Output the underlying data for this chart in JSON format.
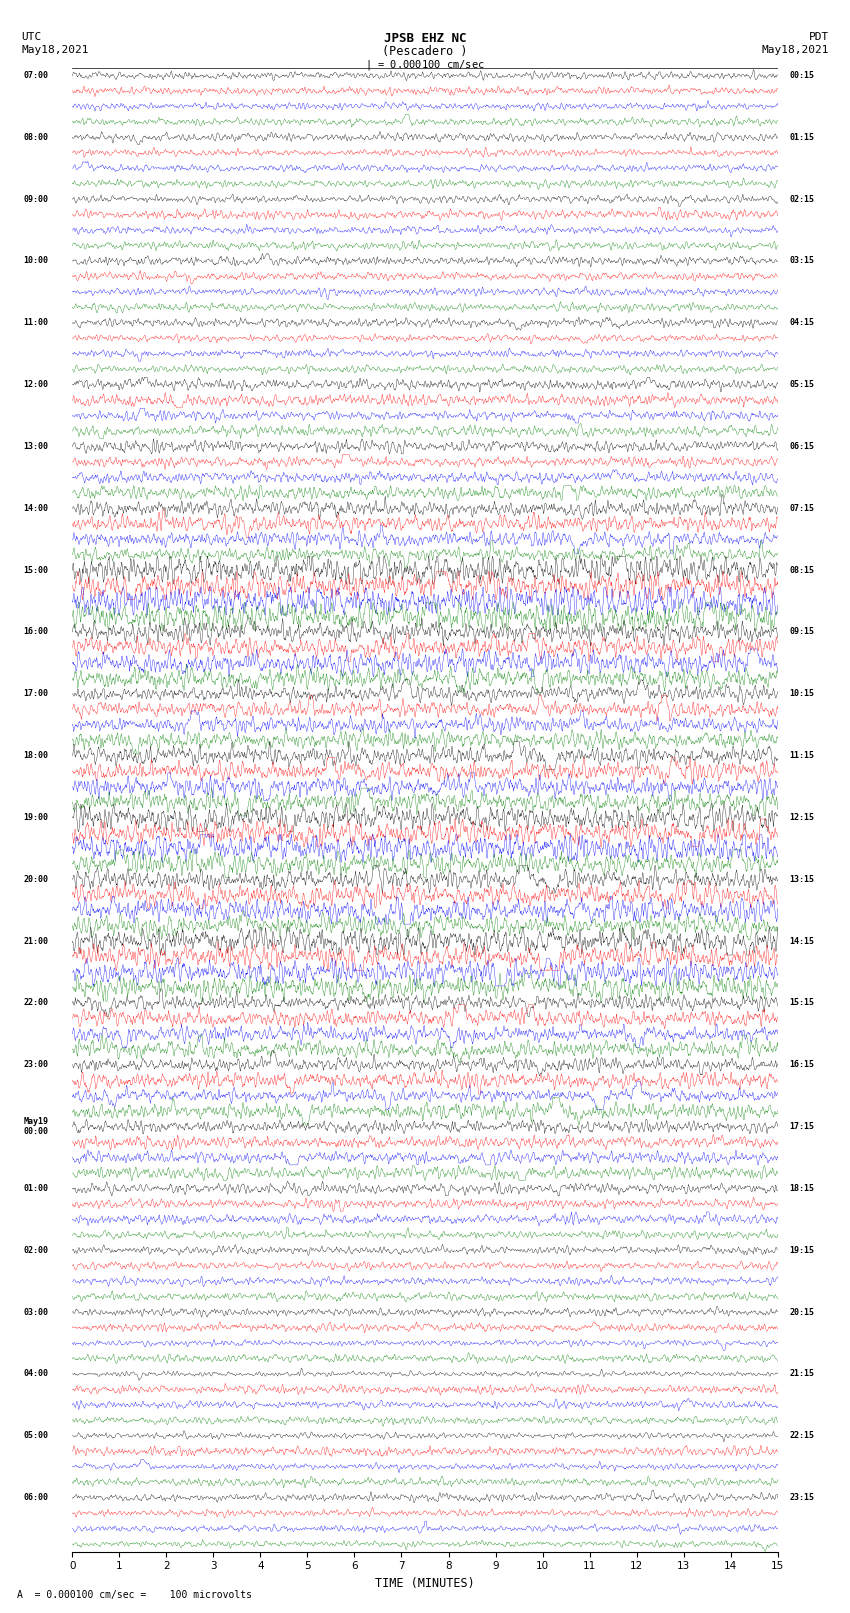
{
  "title_line1": "JPSB EHZ NC",
  "title_line2": "(Pescadero )",
  "scale_label": "= 0.000100 cm/sec",
  "bottom_label": "A  = 0.000100 cm/sec =    100 microvolts",
  "xlabel": "TIME (MINUTES)",
  "utc_label1": "UTC",
  "utc_label2": "May18,2021",
  "pdt_label1": "PDT",
  "pdt_label2": "May18,2021",
  "left_times": [
    "07:00",
    "08:00",
    "09:00",
    "10:00",
    "11:00",
    "12:00",
    "13:00",
    "14:00",
    "15:00",
    "16:00",
    "17:00",
    "18:00",
    "19:00",
    "20:00",
    "21:00",
    "22:00",
    "23:00",
    "May19\n00:00",
    "01:00",
    "02:00",
    "03:00",
    "04:00",
    "05:00",
    "06:00"
  ],
  "right_times": [
    "00:15",
    "01:15",
    "02:15",
    "03:15",
    "04:15",
    "05:15",
    "06:15",
    "07:15",
    "08:15",
    "09:15",
    "10:15",
    "11:15",
    "12:15",
    "13:15",
    "14:15",
    "15:15",
    "16:15",
    "17:15",
    "18:15",
    "19:15",
    "20:15",
    "21:15",
    "22:15",
    "23:15"
  ],
  "trace_colors": [
    "black",
    "red",
    "blue",
    "green"
  ],
  "n_groups": 24,
  "n_cols": 4,
  "x_min": 0,
  "x_max": 15,
  "x_ticks": [
    0,
    1,
    2,
    3,
    4,
    5,
    6,
    7,
    8,
    9,
    10,
    11,
    12,
    13,
    14,
    15
  ],
  "background_color": "white",
  "seed": 42
}
